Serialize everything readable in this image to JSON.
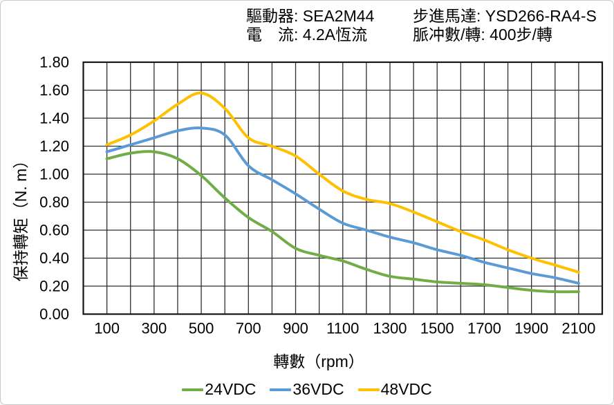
{
  "frame": {
    "background": "#ffffff",
    "border_color": "#c9c9c9"
  },
  "header": {
    "col1": {
      "line1": "驅動器: SEA2M44",
      "line2": "電　流: 4.2A恆流"
    },
    "col2": {
      "line1": "步進馬達: YSD266-RA4-S",
      "line2": "脈冲數/轉: 400步/轉"
    }
  },
  "chart_data": {
    "type": "line",
    "title": "",
    "xlabel": "轉數（rpm）",
    "ylabel": "保持轉矩（N. m）",
    "x": [
      100,
      200,
      300,
      400,
      500,
      600,
      700,
      800,
      900,
      1000,
      1100,
      1200,
      1300,
      1400,
      1500,
      1600,
      1700,
      1800,
      1900,
      2000,
      2100
    ],
    "series": [
      {
        "name": "24VDC",
        "color": "#70AD47",
        "values": [
          1.11,
          1.15,
          1.16,
          1.11,
          0.99,
          0.83,
          0.69,
          0.59,
          0.47,
          0.42,
          0.38,
          0.32,
          0.27,
          0.25,
          0.23,
          0.22,
          0.21,
          0.19,
          0.17,
          0.16,
          0.16
        ]
      },
      {
        "name": "36VDC",
        "color": "#5B9BD5",
        "values": [
          1.16,
          1.21,
          1.26,
          1.31,
          1.33,
          1.28,
          1.06,
          0.96,
          0.86,
          0.75,
          0.65,
          0.6,
          0.55,
          0.51,
          0.46,
          0.42,
          0.37,
          0.33,
          0.29,
          0.26,
          0.22
        ]
      },
      {
        "name": "48VDC",
        "color": "#FFC000",
        "values": [
          1.21,
          1.28,
          1.38,
          1.5,
          1.58,
          1.47,
          1.26,
          1.2,
          1.13,
          1.0,
          0.88,
          0.82,
          0.79,
          0.73,
          0.66,
          0.59,
          0.53,
          0.46,
          0.4,
          0.35,
          0.3
        ]
      }
    ],
    "xlim": [
      0,
      2200
    ],
    "ylim": [
      0,
      1.8
    ],
    "x_tick_labels": [
      "100",
      "300",
      "500",
      "700",
      "900",
      "1100",
      "1300",
      "1500",
      "1700",
      "1900",
      "2100"
    ],
    "y_tick_labels": [
      "0.00",
      "0.20",
      "0.40",
      "0.60",
      "0.80",
      "1.00",
      "1.20",
      "1.40",
      "1.60",
      "1.80"
    ],
    "grid": true,
    "grid_color": "#2e2e2e",
    "plot_border_color": "#151515",
    "tick_label_color": "#000000",
    "legend_position": "bottom",
    "smooth_lines": true
  }
}
